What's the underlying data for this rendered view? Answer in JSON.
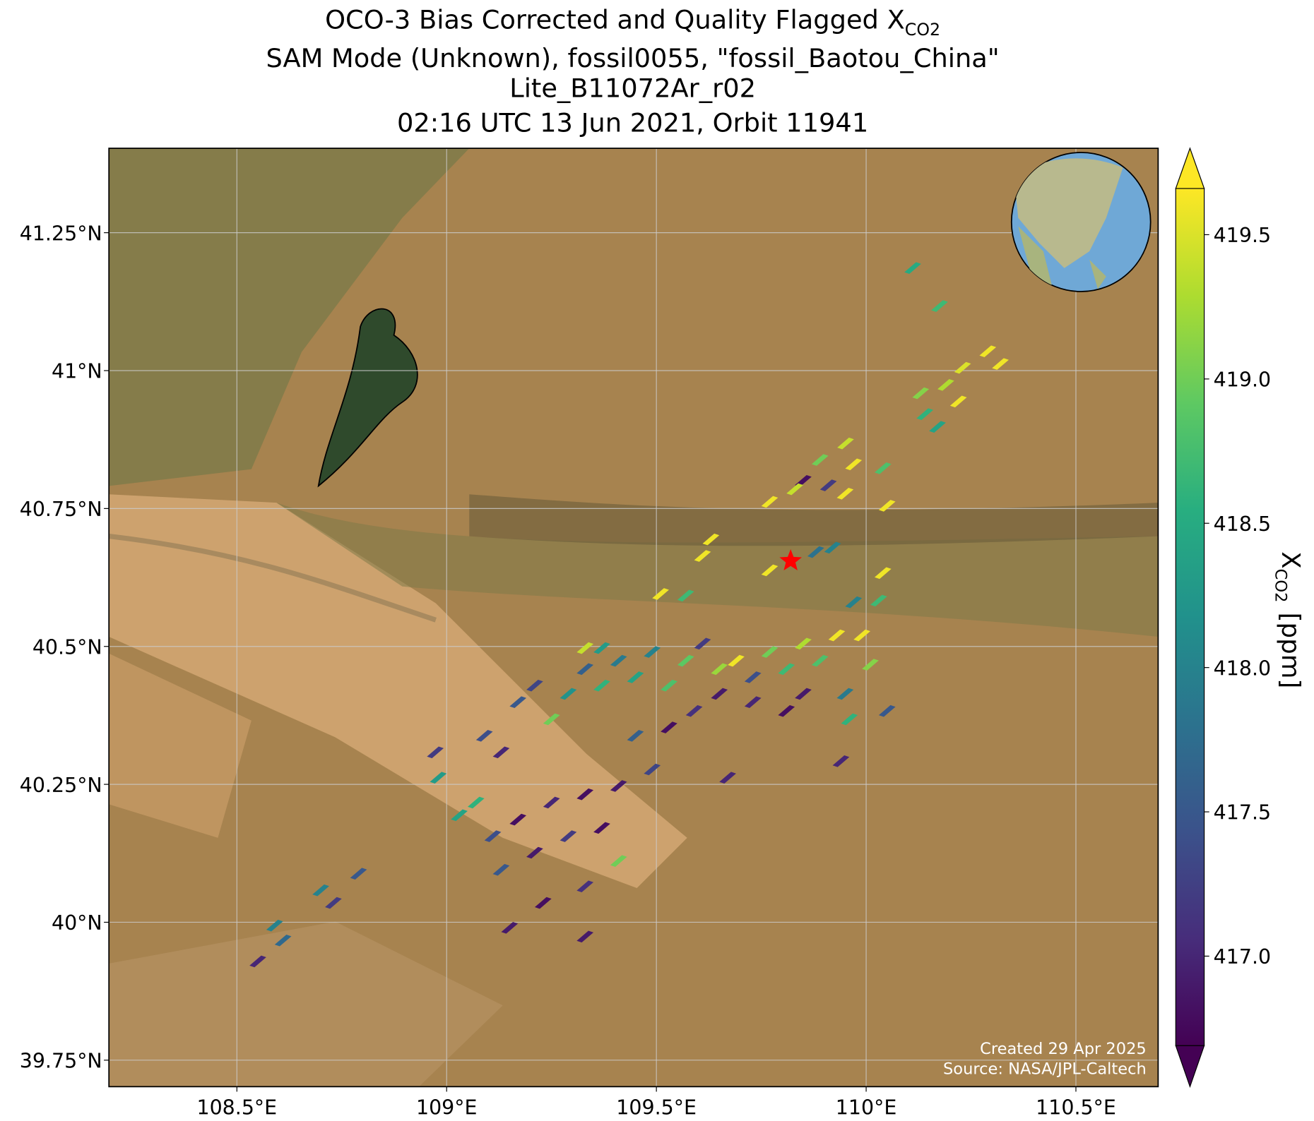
{
  "chart_data": {
    "type": "map",
    "title": {
      "text": "OCO-3 Bias Corrected and Quality Flagged X",
      "subscript": "CO2"
    },
    "subtitle": [
      "SAM Mode (Unknown), fossil0055, \"fossil_Baotou_China\"",
      "Lite_B11072Ar_r02",
      "02:16 UTC 13 Jun 2021, Orbit 11941"
    ],
    "xlim": [
      108.195,
      110.696
    ],
    "ylim": [
      39.702,
      41.403
    ],
    "xticks": [
      {
        "value": 108.5,
        "label": "108.5°E"
      },
      {
        "value": 109,
        "label": "109°E"
      },
      {
        "value": 109.5,
        "label": "109.5°E"
      },
      {
        "value": 110,
        "label": "110°E"
      },
      {
        "value": 110.5,
        "label": "110.5°E"
      }
    ],
    "yticks": [
      {
        "value": 39.75,
        "label": "39.75°N"
      },
      {
        "value": 40,
        "label": "40°N"
      },
      {
        "value": 40.25,
        "label": "40.25°N"
      },
      {
        "value": 40.5,
        "label": "40.5°N"
      },
      {
        "value": 40.75,
        "label": "40.75°N"
      },
      {
        "value": 41,
        "label": "41°N"
      },
      {
        "value": 41.25,
        "label": "41.25°N"
      }
    ],
    "grid": true,
    "colormap": "viridis",
    "clim": [
      416.69,
      419.66
    ],
    "cticks": [
      {
        "value": 417,
        "label": "417.0"
      },
      417.5,
      {
        "value": 418,
        "label": "418.0"
      },
      418.5,
      {
        "value": 419,
        "label": "419.0"
      },
      419.5
    ],
    "colorbar_label": {
      "text": "X",
      "subscript": "CO2",
      "unit": "[ppm]"
    },
    "site": {
      "lon": 109.82,
      "lat": 40.655
    },
    "soundings": {
      "lon": [
        110.111,
        110.175,
        110.29,
        110.32,
        110.23,
        110.19,
        110.13,
        110.22,
        110.14,
        110.17,
        109.951,
        109.89,
        109.97,
        110.04,
        109.85,
        109.91,
        109.95,
        109.83,
        109.77,
        110.05,
        109.63,
        109.61,
        109.77,
        109.88,
        109.92,
        109.51,
        109.57,
        110.04,
        109.97,
        110.03,
        109.33,
        109.37,
        108.973,
        108.98,
        109.03,
        109.07,
        109.09,
        109.13,
        109.17,
        109.21,
        109.25,
        109.29,
        109.33,
        109.37,
        109.41,
        109.45,
        109.49,
        109.53,
        109.57,
        109.61,
        109.65,
        109.69,
        109.73,
        109.77,
        109.81,
        109.85,
        109.89,
        109.93,
        109.99,
        110.01,
        109.95,
        109.96,
        109.85,
        109.81,
        109.73,
        109.65,
        109.59,
        109.53,
        109.45,
        109.49,
        109.41,
        109.33,
        109.25,
        109.17,
        109.11,
        109.13,
        109.21,
        109.29,
        109.37,
        109.41,
        109.33,
        109.23,
        109.15,
        109.33,
        109.67,
        109.94,
        110.05,
        108.79,
        108.7,
        108.73,
        108.59,
        108.61,
        108.55
      ],
      "lat": [
        41.186,
        41.117,
        41.035,
        41.012,
        41.005,
        40.974,
        40.959,
        40.944,
        40.921,
        40.898,
        40.868,
        40.838,
        40.83,
        40.823,
        40.8,
        40.792,
        40.777,
        40.785,
        40.762,
        40.755,
        40.694,
        40.664,
        40.638,
        40.671,
        40.679,
        40.595,
        40.592,
        40.633,
        40.58,
        40.583,
        40.497,
        40.497,
        40.308,
        40.262,
        40.194,
        40.217,
        40.338,
        40.308,
        40.399,
        40.429,
        40.368,
        40.414,
        40.459,
        40.429,
        40.474,
        40.444,
        40.49,
        40.429,
        40.474,
        40.505,
        40.459,
        40.474,
        40.444,
        40.49,
        40.459,
        40.505,
        40.474,
        40.52,
        40.52,
        40.467,
        40.414,
        40.368,
        40.414,
        40.383,
        40.399,
        40.414,
        40.383,
        40.353,
        40.338,
        40.277,
        40.247,
        40.232,
        40.217,
        40.186,
        40.156,
        40.095,
        40.126,
        40.156,
        40.171,
        40.111,
        40.065,
        40.035,
        39.99,
        39.974,
        40.262,
        40.292,
        40.383,
        40.088,
        40.058,
        40.035,
        39.994,
        39.967,
        39.929
      ],
      "values": [
        418.5,
        418.7,
        419.6,
        419.6,
        419.5,
        419.3,
        419.1,
        419.6,
        418.6,
        418.4,
        419.4,
        419.0,
        419.6,
        418.8,
        416.8,
        417.2,
        419.6,
        419.4,
        419.6,
        419.6,
        419.6,
        419.6,
        419.6,
        417.8,
        418.0,
        419.6,
        418.7,
        419.6,
        418.0,
        418.7,
        419.4,
        418.3,
        417.2,
        418.3,
        418.4,
        418.6,
        417.4,
        417.0,
        417.5,
        417.3,
        419.0,
        418.2,
        417.6,
        418.6,
        417.9,
        418.4,
        418.0,
        418.8,
        418.9,
        417.2,
        419.2,
        419.6,
        417.4,
        419.0,
        418.7,
        419.3,
        418.8,
        419.6,
        419.6,
        419.1,
        417.9,
        418.6,
        416.9,
        416.8,
        417.0,
        416.9,
        417.1,
        416.8,
        417.6,
        417.3,
        416.9,
        416.8,
        417.0,
        416.8,
        417.4,
        417.5,
        416.9,
        417.2,
        416.8,
        419.0,
        417.1,
        416.8,
        416.9,
        416.9,
        417.0,
        417.0,
        417.5,
        417.5,
        418.0,
        417.2,
        418.0,
        417.7,
        417.0
      ]
    },
    "annotations": [
      "Created 29 Apr 2025",
      "Source: NASA/JPL-Caltech"
    ]
  }
}
